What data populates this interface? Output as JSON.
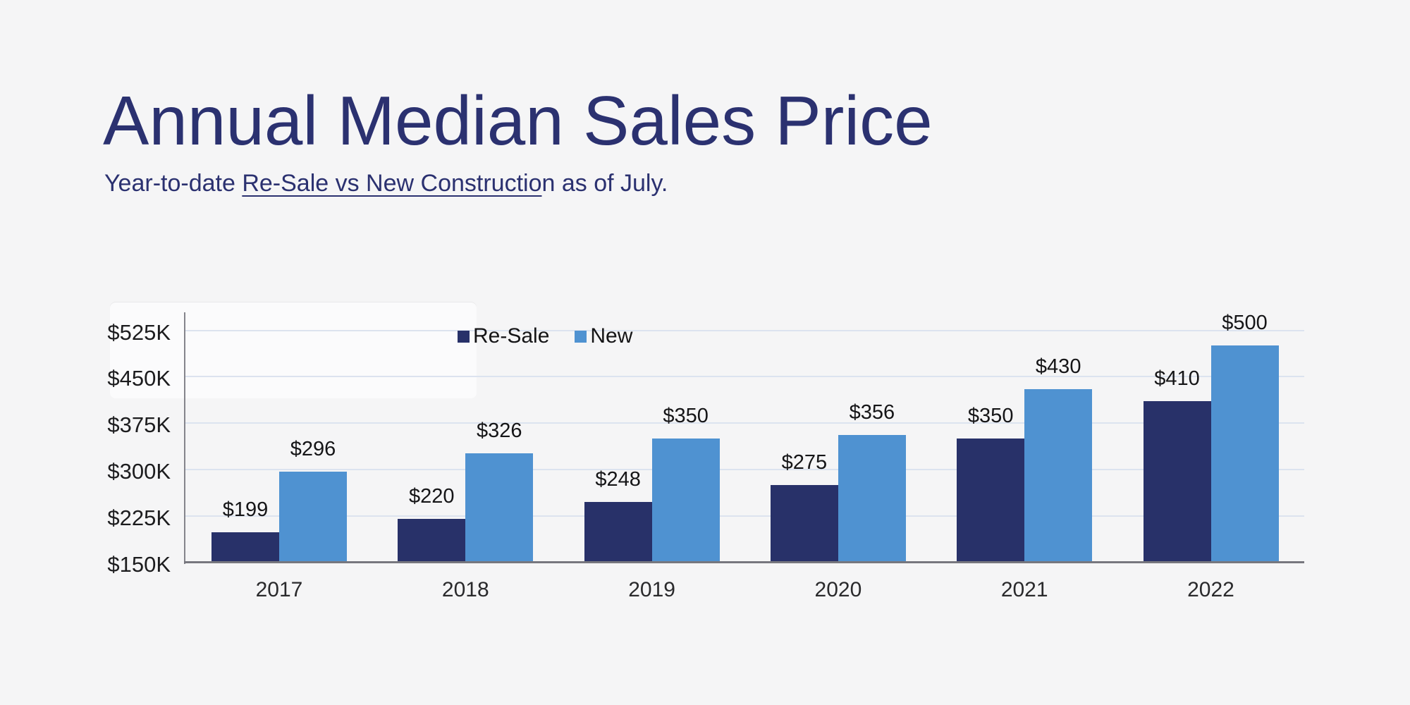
{
  "header": {
    "title": "Annual Median Sales Price",
    "subtitle_prefix": "Year-to-date ",
    "subtitle_underlined": "Re-Sale vs New Constructio",
    "subtitle_suffix": "n as of July.",
    "title_color": "#2b3170",
    "subtitle_color": "#2b3170"
  },
  "chart_data": {
    "type": "bar",
    "title": "Annual Median Sales Price",
    "subtitle": "Year-to-date Re-Sale vs New Construction as of July.",
    "categories": [
      "2017",
      "2018",
      "2019",
      "2020",
      "2021",
      "2022"
    ],
    "series": [
      {
        "name": "Re-Sale",
        "color": "#283169",
        "values": [
          199,
          220,
          248,
          275,
          350,
          410
        ],
        "labels": [
          "$199",
          "$220",
          "$248",
          "$275",
          "$350",
          "$410"
        ]
      },
      {
        "name": "New",
        "color": "#4f92d1",
        "values": [
          296,
          326,
          350,
          356,
          430,
          500
        ],
        "labels": [
          "$296",
          "$326",
          "$350",
          "$356",
          "$430",
          "$500"
        ]
      }
    ],
    "y_axis": {
      "min": 150,
      "max": 525,
      "tick_values": [
        150,
        225,
        300,
        375,
        450,
        525
      ],
      "tick_labels": [
        "$150K",
        "$225K",
        "$300K",
        "$375K",
        "$450K",
        "$525K"
      ],
      "unit": "thousand USD"
    },
    "legend": {
      "position": "top-center",
      "entries": [
        "Re-Sale",
        "New"
      ]
    },
    "grid": true,
    "gridline_color": "#dce3ef",
    "axis_color": "#85858c",
    "baseline_color": "#77777e",
    "value_prefix": "$"
  }
}
